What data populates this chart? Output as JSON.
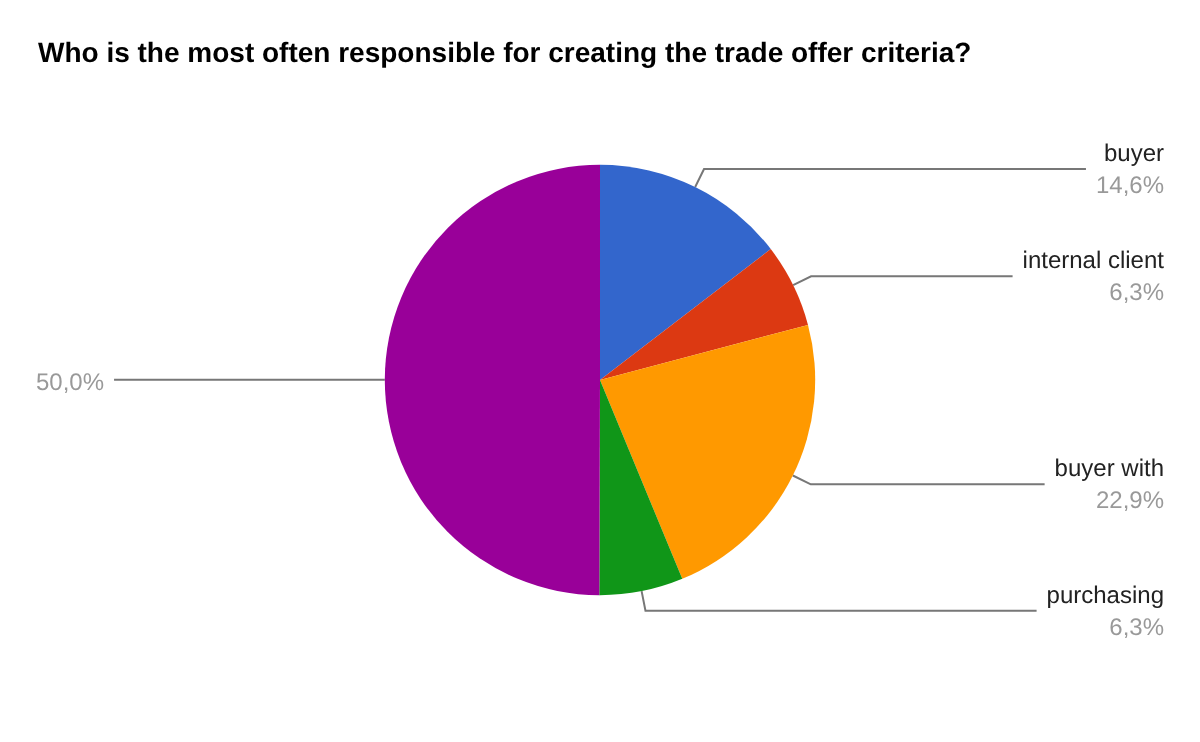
{
  "chart_data": {
    "type": "pie",
    "title": "Who is the most often responsible for creating the trade offer criteria?",
    "categories": [
      "buyer",
      "internal client",
      "buyer with",
      "purchasing",
      null
    ],
    "values": [
      14.6,
      6.3,
      22.9,
      6.3,
      50.0
    ],
    "value_labels": [
      "14,6%",
      "6,3%",
      "22,9%",
      "6,3%",
      "50,0%"
    ],
    "colors": [
      "#3366cc",
      "#dc3912",
      "#ff9900",
      "#109618",
      "#990099"
    ],
    "legend": false
  }
}
